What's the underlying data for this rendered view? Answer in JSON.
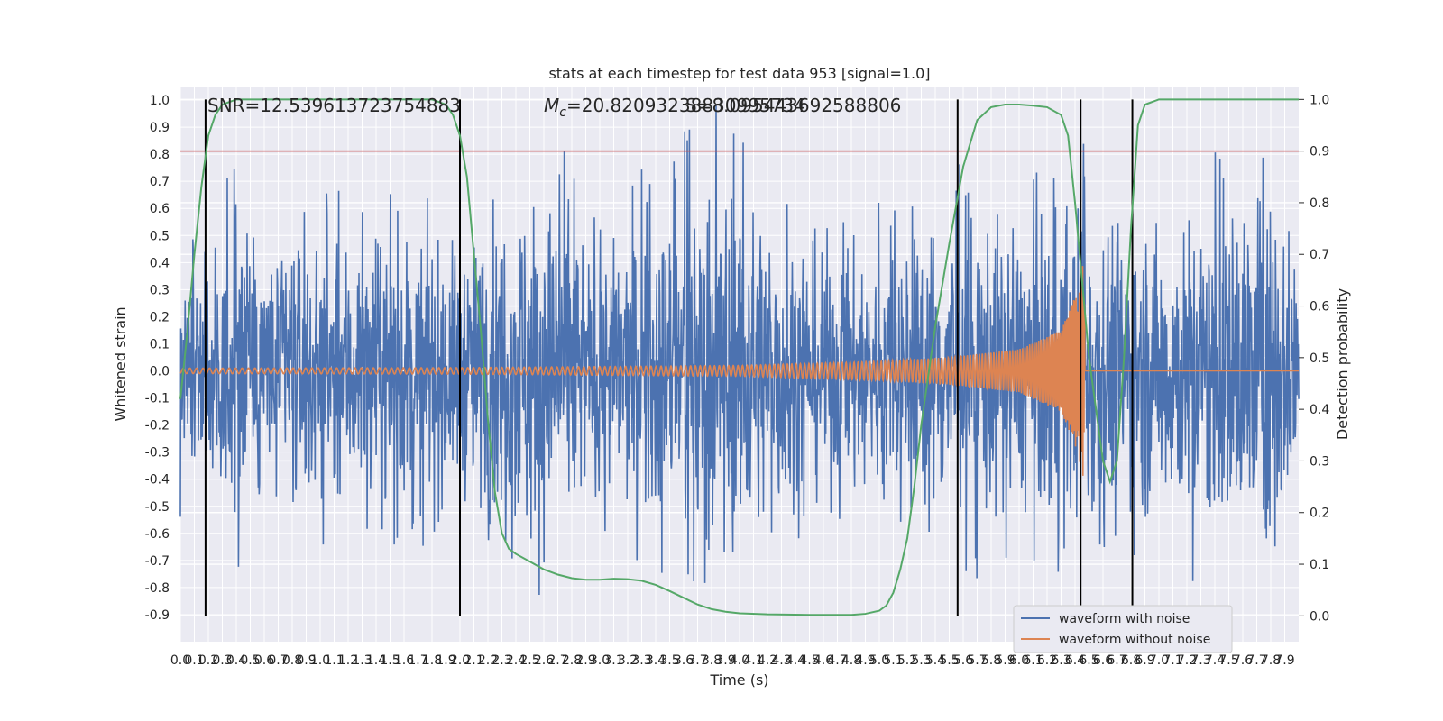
{
  "chart_data": {
    "type": "line",
    "title": "stats at each timestep for test data 953 [signal=1.0]",
    "xlabel": "Time (s)",
    "ylabel": "Whitened strain",
    "y2label": "Detection probability",
    "xlim": [
      0,
      8
    ],
    "ylim": [
      -1.0,
      1.05
    ],
    "y2lim": [
      -0.05,
      1.025
    ],
    "grid": true,
    "legend_position": "lower-right",
    "x_ticks": [
      0.0,
      0.1,
      0.2,
      0.3,
      0.4,
      0.5,
      0.6,
      0.7,
      0.8,
      0.9,
      1.0,
      1.1,
      1.2,
      1.3,
      1.4,
      1.5,
      1.6,
      1.7,
      1.8,
      1.9,
      2.0,
      2.1,
      2.2,
      2.3,
      2.4,
      2.5,
      2.6,
      2.7,
      2.8,
      2.9,
      3.0,
      3.1,
      3.2,
      3.3,
      3.4,
      3.5,
      3.6,
      3.7,
      3.8,
      3.9,
      4.0,
      4.1,
      4.2,
      4.3,
      4.4,
      4.5,
      4.6,
      4.7,
      4.8,
      4.9,
      5.0,
      5.1,
      5.2,
      5.3,
      5.4,
      5.5,
      5.6,
      5.7,
      5.8,
      5.9,
      6.0,
      6.1,
      6.2,
      6.3,
      6.4,
      6.5,
      6.6,
      6.7,
      6.8,
      6.9,
      7.0,
      7.1,
      7.2,
      7.3,
      7.4,
      7.5,
      7.6,
      7.7,
      7.8,
      7.9
    ],
    "y_ticks": [
      -0.9,
      -0.8,
      -0.7,
      -0.6,
      -0.5,
      -0.4,
      -0.3,
      -0.2,
      -0.1,
      0.0,
      0.1,
      0.2,
      0.3,
      0.4,
      0.5,
      0.6,
      0.7,
      0.8,
      0.9,
      1.0
    ],
    "y2_ticks": [
      0.0,
      0.1,
      0.2,
      0.3,
      0.4,
      0.5,
      0.6,
      0.7,
      0.8,
      0.9,
      1.0
    ],
    "annotations": {
      "snr": "SNR=12.539613723754883",
      "mc": "=20.82093238830995734",
      "mc_symbol_main": "M",
      "mc_symbol_sub": "c",
      "overlap": "S=8.095443692588806"
    },
    "colors": {
      "noise": "#4c72b0",
      "clean": "#dd8452",
      "prob": "#55a868",
      "threshold": "#c44e52",
      "vline": "#000000",
      "bg": "#eaeaf2",
      "grid": "#ffffff"
    },
    "threshold_prob": 0.9,
    "vlines_x": [
      0.18,
      2.0,
      5.56,
      6.44,
      6.81
    ],
    "series": [
      {
        "name": "waveform with noise",
        "kind": "noise",
        "amplitude_envelope": [
          [
            0.0,
            0.62
          ],
          [
            0.2,
            0.75
          ],
          [
            0.5,
            0.78
          ],
          [
            1.0,
            0.66
          ],
          [
            1.5,
            0.7
          ],
          [
            2.0,
            0.62
          ],
          [
            2.5,
            0.97
          ],
          [
            3.0,
            0.62
          ],
          [
            3.85,
            1.0
          ],
          [
            4.5,
            0.65
          ],
          [
            5.0,
            0.64
          ],
          [
            5.5,
            0.8
          ],
          [
            6.0,
            0.73
          ],
          [
            6.4,
            0.84
          ],
          [
            6.5,
            0.85
          ],
          [
            7.0,
            0.72
          ],
          [
            7.8,
            0.94
          ],
          [
            8.0,
            0.6
          ]
        ]
      },
      {
        "name": "waveform without noise",
        "kind": "chirp",
        "merger_time": 6.47,
        "amplitude_at": [
          [
            0.0,
            0.01
          ],
          [
            2.0,
            0.012
          ],
          [
            4.0,
            0.02
          ],
          [
            5.0,
            0.035
          ],
          [
            5.5,
            0.05
          ],
          [
            6.0,
            0.08
          ],
          [
            6.3,
            0.15
          ],
          [
            6.42,
            0.3
          ],
          [
            6.47,
            0.45
          ],
          [
            6.5,
            0.0
          ],
          [
            8.0,
            0.0
          ]
        ]
      },
      {
        "name": "Detection probability",
        "kind": "prob",
        "x": [
          0.0,
          0.05,
          0.1,
          0.15,
          0.2,
          0.25,
          0.3,
          0.35,
          0.4,
          0.5,
          0.7,
          1.0,
          1.5,
          1.8,
          1.9,
          1.95,
          2.0,
          2.05,
          2.1,
          2.15,
          2.2,
          2.25,
          2.3,
          2.35,
          2.4,
          2.5,
          2.6,
          2.7,
          2.8,
          2.9,
          3.0,
          3.1,
          3.2,
          3.3,
          3.4,
          3.5,
          3.6,
          3.7,
          3.8,
          3.9,
          4.0,
          4.2,
          4.5,
          4.8,
          4.9,
          5.0,
          5.05,
          5.1,
          5.15,
          5.2,
          5.25,
          5.3,
          5.4,
          5.5,
          5.6,
          5.7,
          5.8,
          5.9,
          6.0,
          6.1,
          6.2,
          6.3,
          6.35,
          6.4,
          6.45,
          6.5,
          6.55,
          6.6,
          6.65,
          6.7,
          6.75,
          6.8,
          6.85,
          6.9,
          7.0,
          7.5,
          8.0
        ],
        "y": [
          0.42,
          0.55,
          0.7,
          0.83,
          0.93,
          0.97,
          0.99,
          0.995,
          1.0,
          1.0,
          1.0,
          1.0,
          1.0,
          1.0,
          0.99,
          0.97,
          0.93,
          0.85,
          0.7,
          0.55,
          0.38,
          0.24,
          0.16,
          0.13,
          0.12,
          0.105,
          0.09,
          0.08,
          0.073,
          0.07,
          0.07,
          0.072,
          0.071,
          0.068,
          0.06,
          0.048,
          0.035,
          0.022,
          0.013,
          0.008,
          0.005,
          0.003,
          0.002,
          0.002,
          0.004,
          0.01,
          0.02,
          0.045,
          0.09,
          0.15,
          0.25,
          0.37,
          0.56,
          0.72,
          0.87,
          0.96,
          0.985,
          0.99,
          0.99,
          0.988,
          0.985,
          0.97,
          0.93,
          0.8,
          0.65,
          0.5,
          0.4,
          0.3,
          0.26,
          0.3,
          0.5,
          0.75,
          0.95,
          0.99,
          1.0,
          1.0,
          1.0
        ]
      }
    ]
  }
}
